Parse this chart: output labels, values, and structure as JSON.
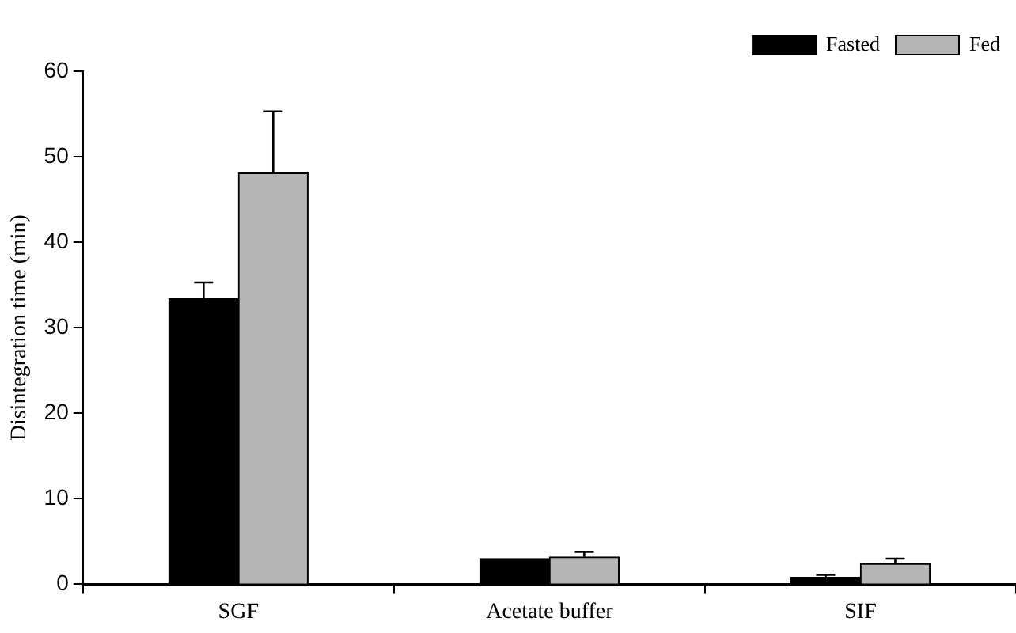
{
  "chart_data": {
    "type": "bar",
    "ylabel": "Disintegration time (min)",
    "categories": [
      "SGF",
      "Acetate buffer",
      "SIF"
    ],
    "series": [
      {
        "name": "Fasted",
        "color": "#000000",
        "values": [
          33.4,
          3.0,
          0.8
        ],
        "errors": [
          1.9,
          null,
          0.3
        ]
      },
      {
        "name": "Fed",
        "color": "#b4b4b4",
        "values": [
          48.1,
          3.2,
          2.4
        ],
        "errors": [
          7.2,
          0.6,
          0.6
        ]
      }
    ],
    "ylim": [
      0,
      60
    ],
    "yticks": [
      0,
      10,
      20,
      30,
      40,
      50,
      60
    ],
    "grid": false,
    "legend": "top right"
  }
}
